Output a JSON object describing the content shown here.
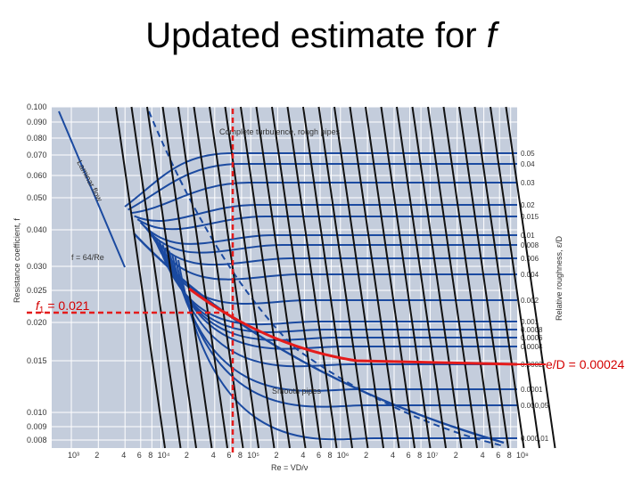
{
  "slide": {
    "title_text": "Updated estimate for ",
    "title_var": "f"
  },
  "moody": {
    "y_ticks": [
      "0.100",
      "0.090",
      "0.080",
      "0.070",
      "0.060",
      "0.050",
      "0.040",
      "0.030",
      "0.025",
      "0.020",
      "0.015",
      "0.010",
      "0.009",
      "0.008"
    ],
    "y_axis_label": "Resistance coefficient, f",
    "right_ticks": [
      "0.05",
      "0.04",
      "0.03",
      "0.02",
      "0.015",
      "0.01",
      "0.008",
      "0.006",
      "0.004",
      "0.002",
      "0.001",
      "0.0008",
      "0.0006",
      "0.0004",
      "0.0002",
      "0.0001",
      "0.000,05",
      "0.000,01"
    ],
    "right_axis_label": "Relative roughness, ε/D",
    "x_ticks": [
      "10³",
      "2",
      "4",
      "6",
      "8",
      "10⁴",
      "2",
      "4",
      "6",
      "8",
      "10⁵",
      "2",
      "4",
      "6",
      "8",
      "10⁶",
      "2",
      "4",
      "6",
      "8",
      "10⁷",
      "2",
      "4",
      "6",
      "8",
      "10⁸"
    ],
    "x_axis_label": "Re = VD/ν",
    "laminar_label": "Laminar flow",
    "laminar_formula": "f = 64/Re",
    "turbulence_label": "Complete turbulence, rough pipes",
    "smooth_label": "Smooth pipes",
    "colors": {
      "panel": "#c4cddc",
      "grid": "#ffffff",
      "curve": "#1b4aa0",
      "highlight": "#e41b1b",
      "black_lines": "#111111"
    }
  },
  "annotations": {
    "f1_symbol": "f",
    "f1_subscript": "1",
    "f1_value": " = 0.021",
    "roughness_value": "e/D = 0.00024"
  }
}
